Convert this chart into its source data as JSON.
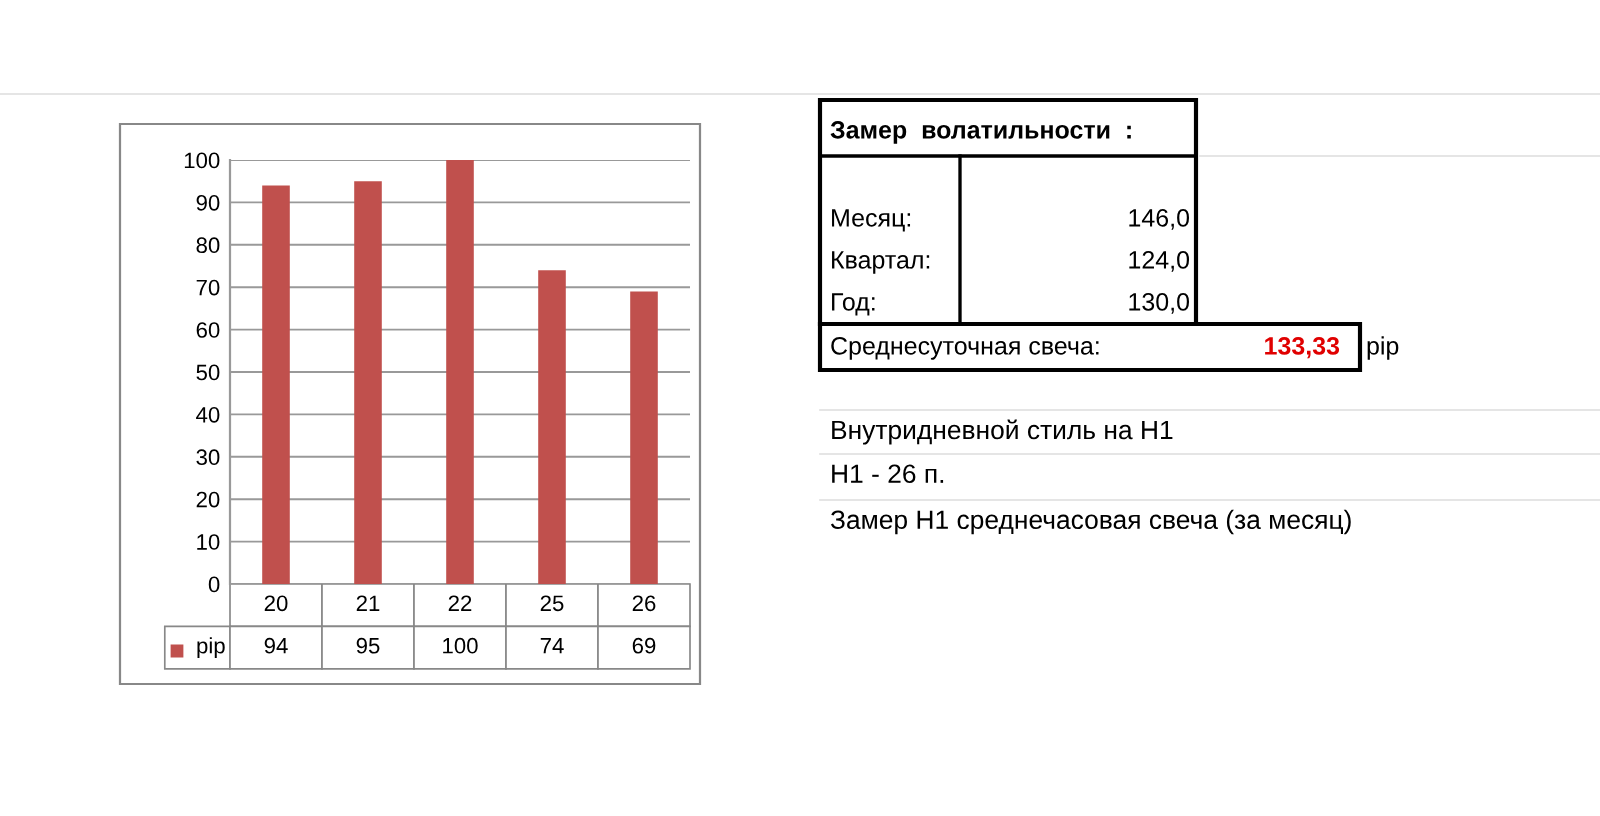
{
  "chart_data": [
    {
      "type": "bar",
      "categories": [
        "20",
        "21",
        "22",
        "25",
        "26"
      ],
      "series": [
        {
          "name": "pip",
          "color": "#c0504d",
          "values": [
            94,
            95,
            100,
            74,
            69
          ]
        }
      ],
      "ylim": [
        0,
        100
      ],
      "yticks": [
        0,
        10,
        20,
        30,
        40,
        50,
        60,
        70,
        80,
        90,
        100
      ],
      "grid": "y",
      "data_labels": true
    },
    {
      "type": "other",
      "annotations": [
        "Замер  волатильности  :",
        "Месяц:",
        "146,0",
        "Квартал:",
        "124,0",
        "Год:",
        "130,0",
        "Среднесуточная свеча:",
        "133,33",
        "pip",
        "Внутридневной стиль на H1",
        "H1 - 26 п.",
        "Замер H1 среднечасовая свеча (за месяц)"
      ]
    }
  ]
}
